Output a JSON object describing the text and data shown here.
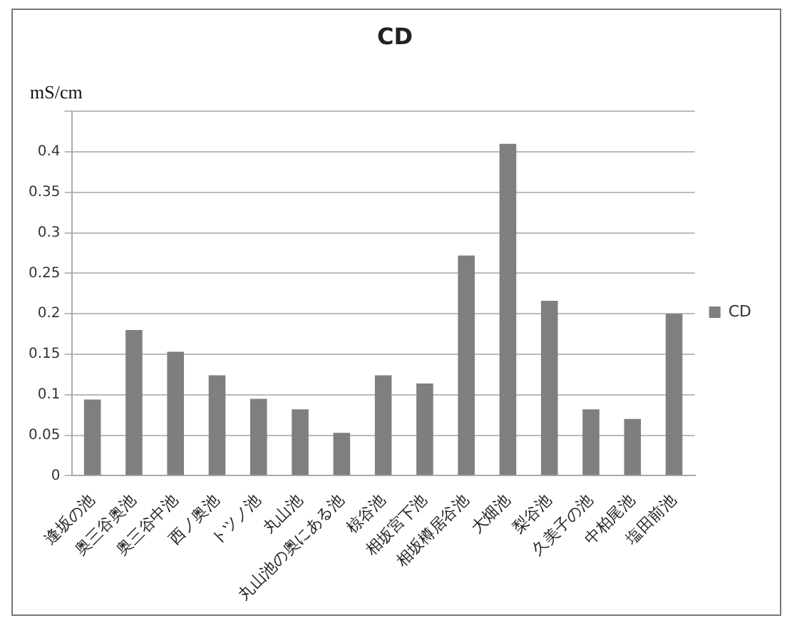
{
  "chart_data": {
    "type": "bar",
    "title": "CD",
    "ylabel": "mS/cm",
    "categories": [
      "逢坂の池",
      "奥三谷奥池",
      "奥三谷中池",
      "西ノ奥池",
      "トツノ池",
      "丸山池",
      "丸山池の奥にある池",
      "椋谷池",
      "相坂宮下池",
      "相坂樽居谷池",
      "大畑池",
      "梨谷池",
      "久美子の池",
      "中柏尾池",
      "塩田前池"
    ],
    "series": [
      {
        "name": "CD",
        "color": "#7f7f7f",
        "values": [
          0.094,
          0.18,
          0.153,
          0.124,
          0.095,
          0.082,
          0.053,
          0.124,
          0.114,
          0.272,
          0.41,
          0.216,
          0.082,
          0.07,
          0.2
        ]
      }
    ],
    "ylim": [
      0,
      0.45
    ],
    "yticks": [
      0,
      0.05,
      0.1,
      0.15,
      0.2,
      0.25,
      0.3,
      0.35,
      0.4,
      {
        "value": 0.45,
        "label": null
      }
    ],
    "grid": "y",
    "legend": "right"
  }
}
